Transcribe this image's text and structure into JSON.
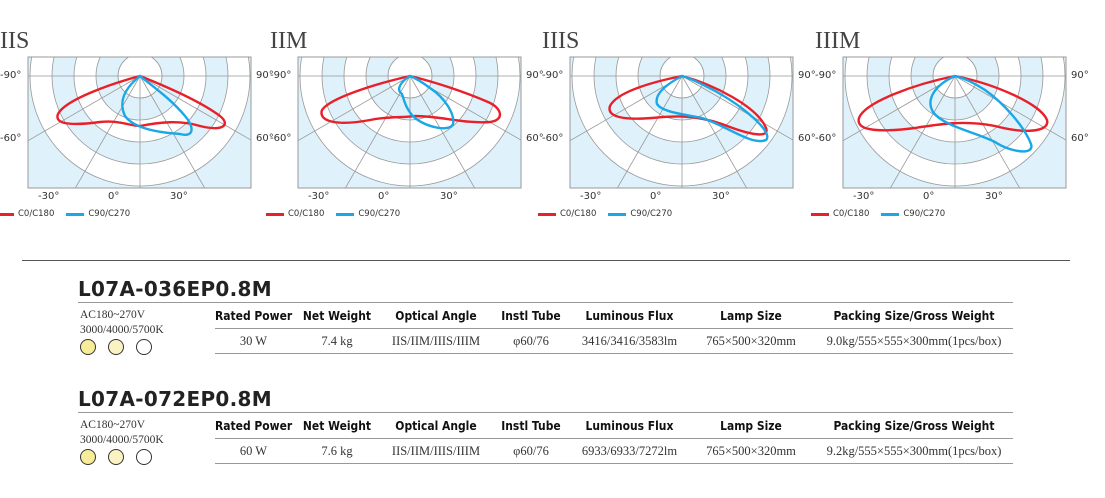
{
  "charts": [
    {
      "title": "IIS"
    },
    {
      "title": "IIM"
    },
    {
      "title": "IIIS"
    },
    {
      "title": "IIIM"
    }
  ],
  "polar_labels": {
    "left_top": "-90°",
    "left_mid": "-60°",
    "right_top": "90°",
    "right_mid": "60°",
    "bottom": [
      "-30°",
      "0°",
      "30°"
    ]
  },
  "legend": [
    {
      "name": "C0/C180",
      "color": "#e8202a"
    },
    {
      "name": "C90/C270",
      "color": "#1aa7e8"
    }
  ],
  "colors": {
    "polar_fill": "#dff1fa",
    "grid": "#999999"
  },
  "columns": [
    "Rated Power",
    "Net Weight",
    "Optical Angle",
    "Instl Tube",
    "Luminous Flux",
    "Lamp Size",
    "Packing Size/Gross Weight"
  ],
  "products": [
    {
      "model": "L07A-036EP0.8M",
      "voltage": "AC180~270V",
      "cct": "3000/4000/5700K",
      "cct_colors": [
        "#f7ec9a",
        "#fbf2c4",
        "#ffffff"
      ],
      "values": [
        "30 W",
        "7.4 kg",
        "IIS/IIM/IIIS/IIIM",
        "φ60/76",
        "3416/3416/3583lm",
        "765×500×320mm",
        "9.0kg/555×555×300mm(1pcs/box)"
      ]
    },
    {
      "model": "L07A-072EP0.8M",
      "voltage": "AC180~270V",
      "cct": "3000/4000/5700K",
      "cct_colors": [
        "#f7ec9a",
        "#fbf2c4",
        "#ffffff"
      ],
      "values": [
        "60 W",
        "7.6 kg",
        "IIS/IIM/IIIS/IIIM",
        "φ60/76",
        "6933/6933/7272lm",
        "765×500×320mm",
        "9.2kg/555×555×300mm(1pcs/box)"
      ]
    }
  ]
}
